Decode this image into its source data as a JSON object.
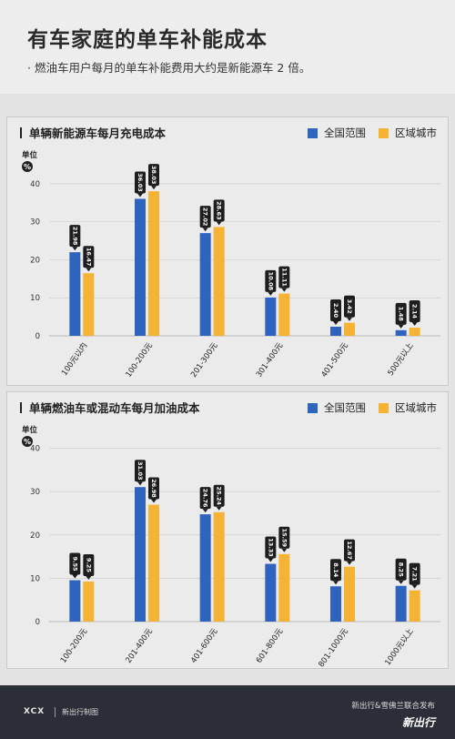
{
  "title": "有车家庭的单车补能成本",
  "subtitle": "· 燃油车用户每月的单车补能费用大约是新能源车 2 倍。",
  "colors": {
    "national": "#2f64be",
    "regional": "#f5b335"
  },
  "charts": [
    {
      "title": "单辆新能源车每月充电成本",
      "legend": [
        "全国范围",
        "区域城市"
      ],
      "unit_label": "单位",
      "unit_symbol": "%"
    },
    {
      "title": "单辆燃油车或混动车每月加油成本",
      "legend": [
        "全国范围",
        "区域城市"
      ],
      "unit_label": "单位",
      "unit_symbol": "%"
    }
  ],
  "chart_data": [
    {
      "type": "bar",
      "title": "单辆新能源车每月充电成本",
      "ylabel": "单位 %",
      "ylim": [
        0,
        45
      ],
      "yticks": [
        0,
        10,
        20,
        30,
        40
      ],
      "categories": [
        "100元以内",
        "100-200元",
        "201-300元",
        "301-400元",
        "401-500元",
        "500元以上"
      ],
      "series": [
        {
          "name": "全国范围",
          "values": [
            21.98,
            36.03,
            27.02,
            10.08,
            2.4,
            1.48
          ],
          "labels": [
            "21.98",
            "36.03",
            "27.02",
            "10.08",
            "2.40",
            "1.48"
          ]
        },
        {
          "name": "区域城市",
          "values": [
            16.47,
            38.03,
            28.63,
            11.11,
            3.42,
            2.14
          ],
          "labels": [
            "16.47",
            "38.03",
            "28.63",
            "11.11",
            "3.42",
            "2.14"
          ]
        }
      ]
    },
    {
      "type": "bar",
      "title": "单辆燃油车或混动车每月加油成本",
      "ylabel": "单位 %",
      "ylim": [
        0,
        42
      ],
      "yticks": [
        0,
        10,
        20,
        30,
        40
      ],
      "categories": [
        "100-200元",
        "201-400元",
        "401-600元",
        "601-800元",
        "801-1000元",
        "1000元以上"
      ],
      "series": [
        {
          "name": "全国范围",
          "values": [
            9.55,
            31.03,
            24.76,
            13.33,
            8.14,
            8.25
          ],
          "labels": [
            "9.55",
            "31.03",
            "24.76",
            "13.33",
            "8.14",
            "8.25"
          ]
        },
        {
          "name": "区域城市",
          "values": [
            9.25,
            26.98,
            25.24,
            15.59,
            12.67,
            7.21
          ],
          "labels": [
            "9.25",
            "26.98",
            "25.24",
            "15.59",
            "12.67",
            "7.21"
          ]
        }
      ]
    }
  ],
  "footer": {
    "brand": "XCX",
    "brand_sub": "新出行制图",
    "publisher": "新出行&雪佛兰联合发布",
    "publisher_logo": "新出行"
  }
}
